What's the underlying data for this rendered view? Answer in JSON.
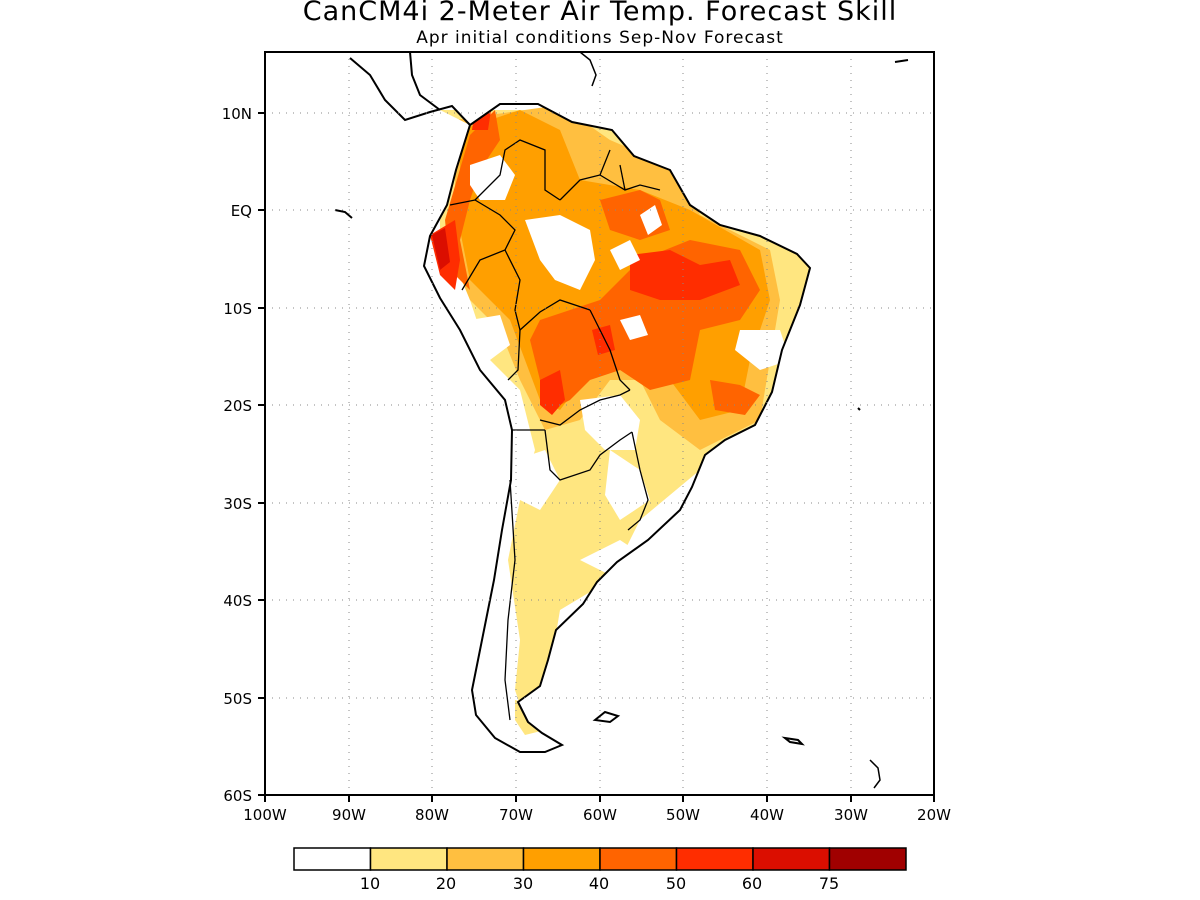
{
  "header": {
    "title": "CanCM4i 2-Meter Air Temp. Forecast Skill",
    "subtitle": "Apr initial conditions  Sep-Nov Forecast"
  },
  "map": {
    "region": "South America",
    "lon_range": [
      -100,
      -20
    ],
    "lat_range": [
      -60,
      16
    ],
    "y_ticks": [
      "10N",
      "EQ",
      "10S",
      "20S",
      "30S",
      "40S",
      "50S",
      "60S"
    ],
    "x_ticks": [
      "100W",
      "90W",
      "80W",
      "70W",
      "60W",
      "50W",
      "40W",
      "30W",
      "20W"
    ],
    "grid": "dotted"
  },
  "colorbar": {
    "labels": [
      "10",
      "20",
      "30",
      "40",
      "50",
      "60",
      "75"
    ],
    "colors": [
      "#ffffff",
      "#ffe680",
      "#ffbf40",
      "#ff9f00",
      "#ff6400",
      "#ff2d00",
      "#db0e00",
      "#a00000"
    ]
  }
}
